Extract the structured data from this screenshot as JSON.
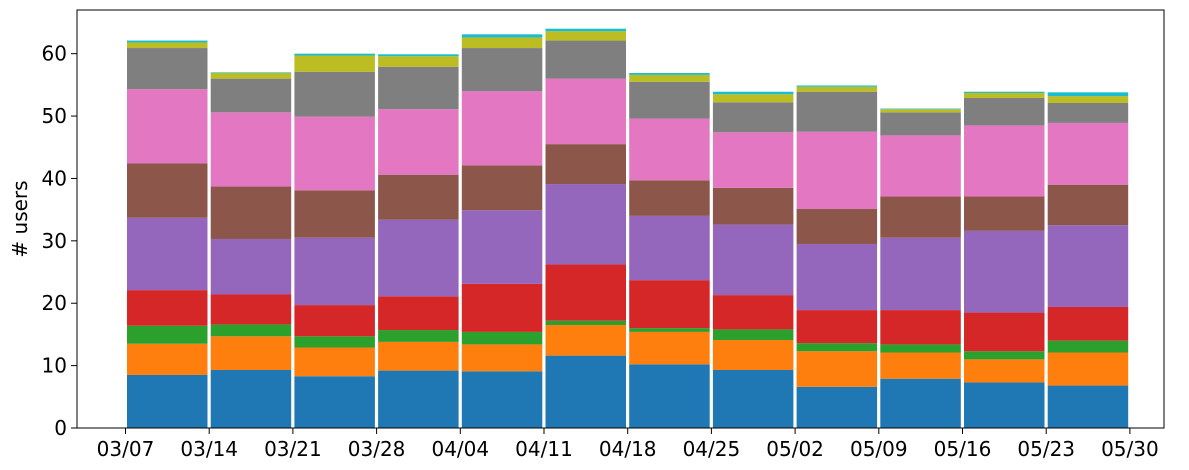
{
  "chart_data": {
    "type": "bar",
    "stacked": true,
    "ylabel": "# users",
    "xlabel": "",
    "ylim": [
      0,
      67
    ],
    "yticks": [
      0,
      10,
      20,
      30,
      40,
      50,
      60
    ],
    "x_tick_labels": [
      "03/07",
      "03/14",
      "03/21",
      "03/28",
      "04/04",
      "04/11",
      "04/18",
      "04/25",
      "05/02",
      "05/09",
      "05/16",
      "05/23",
      "05/30"
    ],
    "grid": false,
    "legend": "none",
    "series": [
      {
        "color": "#1f77b4",
        "values": [
          8.5,
          9.3,
          8.3,
          9.2,
          9.1,
          11.6,
          10.2,
          9.3,
          6.6,
          7.9,
          7.3,
          6.8
        ]
      },
      {
        "color": "#ff7f0e",
        "values": [
          5.0,
          5.4,
          4.6,
          4.6,
          4.3,
          4.9,
          5.2,
          4.8,
          5.7,
          4.2,
          3.7,
          5.3
        ]
      },
      {
        "color": "#2ca02c",
        "values": [
          2.9,
          1.9,
          1.8,
          1.9,
          2.0,
          0.7,
          0.6,
          1.7,
          1.3,
          1.3,
          1.3,
          1.9
        ]
      },
      {
        "color": "#d62728",
        "values": [
          5.7,
          4.8,
          5.0,
          5.4,
          7.7,
          9.0,
          7.7,
          5.5,
          5.3,
          5.5,
          6.2,
          5.4
        ]
      },
      {
        "color": "#9467bd",
        "values": [
          11.6,
          8.9,
          10.8,
          12.3,
          11.8,
          12.9,
          10.3,
          11.3,
          10.6,
          11.6,
          13.1,
          13.1
        ]
      },
      {
        "color": "#8c564b",
        "values": [
          8.7,
          8.4,
          7.6,
          7.2,
          7.2,
          6.4,
          5.7,
          5.9,
          5.6,
          6.6,
          5.5,
          6.5
        ]
      },
      {
        "color": "#e377c2",
        "values": [
          11.9,
          11.9,
          11.8,
          10.5,
          11.9,
          10.5,
          9.9,
          8.9,
          12.4,
          9.8,
          11.4,
          9.9
        ]
      },
      {
        "color": "#7f7f7f",
        "values": [
          6.6,
          5.4,
          7.2,
          6.8,
          6.9,
          6.1,
          5.9,
          4.8,
          6.4,
          3.7,
          4.4,
          3.2
        ]
      },
      {
        "color": "#bcbd22",
        "values": [
          0.9,
          0.9,
          2.6,
          1.7,
          1.7,
          1.5,
          1.1,
          1.3,
          0.8,
          0.5,
          0.8,
          1.1
        ]
      },
      {
        "color": "#17becf",
        "values": [
          0.3,
          0.1,
          0.3,
          0.3,
          0.5,
          0.4,
          0.3,
          0.4,
          0.2,
          0.1,
          0.2,
          0.6
        ]
      }
    ]
  }
}
